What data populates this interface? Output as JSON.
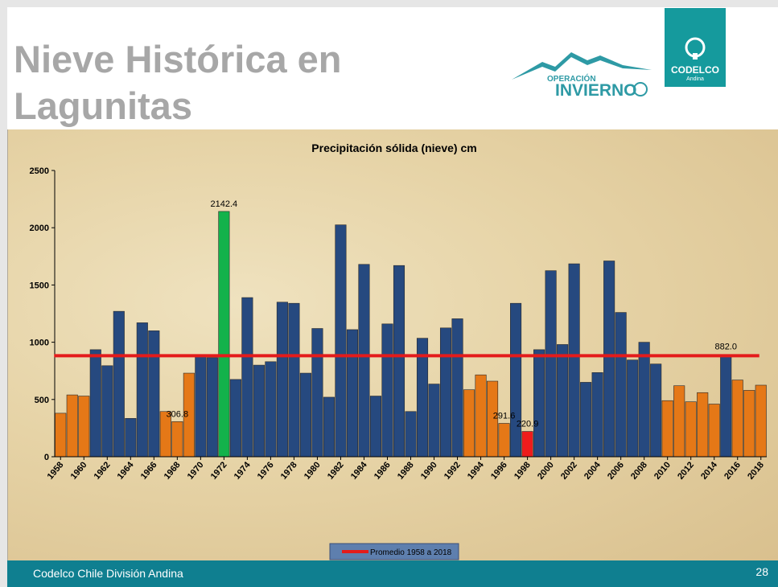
{
  "slide": {
    "title": "Nieve Histórica en Lagunitas",
    "logo_operacion_top": "OPERACIÓN",
    "logo_operacion_bottom": "INVIERNO",
    "logo_codelco_name": "CODELCO",
    "logo_codelco_division": "Andina",
    "footer_text": "Codelco Chile División Andina",
    "page_number": "28"
  },
  "colors": {
    "blue": "#26497f",
    "orange": "#e57817",
    "green": "#13b24b",
    "red": "#ee1c1c",
    "average_line": "#e41b1b",
    "title_gray": "#a7a7a7",
    "footer_teal": "#0f7f90",
    "codelco_teal": "#159a9d"
  },
  "chart_data": {
    "type": "bar",
    "title": "Precipitación sólida (nieve) cm",
    "ylim": [
      0,
      2500
    ],
    "yticks": [
      0,
      500,
      1000,
      1500,
      2000,
      2500
    ],
    "xtick_labels": [
      "1958",
      "1960",
      "1962",
      "1964",
      "1966",
      "1968",
      "1970",
      "1972",
      "1974",
      "1976",
      "1978",
      "1980",
      "1982",
      "1984",
      "1986",
      "1988",
      "1990",
      "1992",
      "1994",
      "1996",
      "1998",
      "2000",
      "2002",
      "2004",
      "2006",
      "2008",
      "2010",
      "2012",
      "2014",
      "2016",
      "2018"
    ],
    "categories": [
      1958,
      1959,
      1960,
      1961,
      1962,
      1963,
      1964,
      1965,
      1966,
      1967,
      1968,
      1969,
      1970,
      1971,
      1972,
      1973,
      1974,
      1975,
      1976,
      1977,
      1978,
      1979,
      1980,
      1981,
      1982,
      1983,
      1984,
      1985,
      1986,
      1987,
      1988,
      1989,
      1990,
      1991,
      1992,
      1993,
      1994,
      1995,
      1996,
      1997,
      1998,
      1999,
      2000,
      2001,
      2002,
      2003,
      2004,
      2005,
      2006,
      2007,
      2008,
      2009,
      2010,
      2011,
      2012,
      2013,
      2014,
      2015,
      2016,
      2017,
      2018
    ],
    "values": [
      380,
      540,
      530,
      935,
      795,
      1270,
      335,
      1170,
      1100,
      395,
      306.8,
      730,
      880,
      865,
      2142.4,
      675,
      1390,
      800,
      830,
      1350,
      1340,
      730,
      1120,
      520,
      2025,
      1110,
      1680,
      530,
      1160,
      1670,
      395,
      1035,
      635,
      1125,
      1205,
      585,
      715,
      660,
      291.6,
      1340,
      220.9,
      935,
      1625,
      980,
      1685,
      650,
      735,
      1710,
      1260,
      845,
      1000,
      810,
      490,
      620,
      480,
      560,
      460,
      875,
      670,
      580,
      625
    ],
    "bar_colors": [
      "orange",
      "orange",
      "orange",
      "blue",
      "blue",
      "blue",
      "blue",
      "blue",
      "blue",
      "orange",
      "orange",
      "orange",
      "blue",
      "blue",
      "green",
      "blue",
      "blue",
      "blue",
      "blue",
      "blue",
      "blue",
      "blue",
      "blue",
      "blue",
      "blue",
      "blue",
      "blue",
      "blue",
      "blue",
      "blue",
      "blue",
      "blue",
      "blue",
      "blue",
      "blue",
      "orange",
      "orange",
      "orange",
      "orange",
      "blue",
      "red",
      "blue",
      "blue",
      "blue",
      "blue",
      "blue",
      "blue",
      "blue",
      "blue",
      "blue",
      "blue",
      "blue",
      "orange",
      "orange",
      "orange",
      "orange",
      "orange",
      "blue",
      "orange",
      "orange",
      "orange"
    ],
    "average": 882.0,
    "average_label": "882.0",
    "data_labels": [
      {
        "year": 1968,
        "text": "306.8"
      },
      {
        "year": 1972,
        "text": "2142.4"
      },
      {
        "year": 1996,
        "text": "291.6"
      },
      {
        "year": 1998,
        "text": "220.9"
      }
    ],
    "legend": {
      "label": "Promedio 1958 a 2018",
      "placement": "bottom-center"
    }
  }
}
